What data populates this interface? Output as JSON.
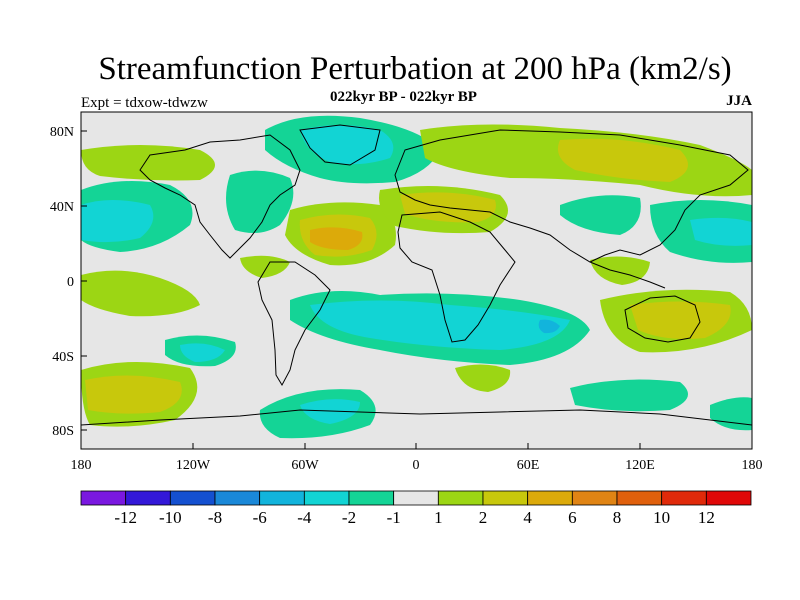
{
  "title": "Streamfunction Perturbation at 200 hPa (km2/s)",
  "subtitle": "022kyr BP - 022kyr BP",
  "experiment_label": "Expt = tdxow-tdwzw",
  "season_label": "JJA",
  "axes": {
    "x_ticks": [
      "180",
      "120W",
      "60W",
      "0",
      "60E",
      "120E",
      "180"
    ],
    "y_ticks": [
      "80N",
      "40N",
      "0",
      "40S",
      "80S"
    ]
  },
  "legend": {
    "colors": [
      "#7a18e0",
      "#3318d8",
      "#1450d0",
      "#1a88d8",
      "#12b4dc",
      "#12d4d4",
      "#14d496",
      "#e6e6e6",
      "#9cd614",
      "#c8c80c",
      "#dcaa0a",
      "#e08414",
      "#e0600c",
      "#e02a0a",
      "#e00808"
    ],
    "labels": [
      "-12",
      "-10",
      "-8",
      "-6",
      "-4",
      "-2",
      "-1",
      "1",
      "2",
      "4",
      "6",
      "8",
      "10",
      "12"
    ]
  },
  "chart_data": {
    "type": "heatmap",
    "title": "Streamfunction Perturbation at 200 hPa (km2/s)",
    "contour_levels": [
      -12,
      -10,
      -8,
      -6,
      -4,
      -2,
      -1,
      1,
      2,
      4,
      6,
      8,
      10,
      12
    ],
    "x_range": [
      "180",
      "180"
    ],
    "y_range": [
      "80S",
      "80N"
    ]
  }
}
